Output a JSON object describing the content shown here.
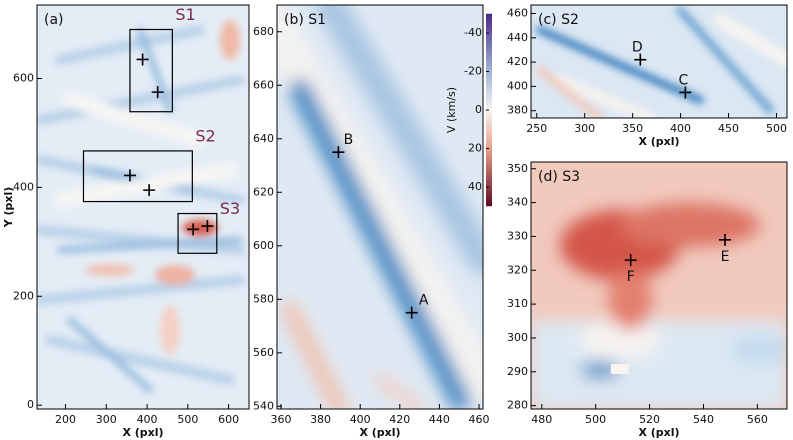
{
  "chart_data": [
    {
      "type": "image",
      "title": "(a)",
      "x_label": "X (pxl)",
      "y_label": "Y (pxl)",
      "xlim": [
        130,
        650
      ],
      "ylim": [
        -7,
        735
      ],
      "xticks": [
        200,
        300,
        400,
        500,
        600
      ],
      "yticks": [
        0,
        200,
        400,
        600
      ],
      "annotations": [
        "S1",
        "S2",
        "S3"
      ]
    },
    {
      "type": "image",
      "title": "(b) S1",
      "x_label": "X (pxl)",
      "xlim": [
        358,
        462
      ],
      "ylim": [
        539,
        690
      ],
      "xticks": [
        360,
        380,
        400,
        420,
        440,
        460
      ],
      "yticks": [
        540,
        560,
        580,
        600,
        620,
        640,
        660,
        680
      ],
      "points": [
        {
          "label": "A",
          "x": 426,
          "y": 575
        },
        {
          "label": "B",
          "x": 389,
          "y": 635
        }
      ],
      "colorbar": {
        "label": "V (km/s)",
        "lim": [
          -50,
          50
        ],
        "ticks": [
          -40,
          -20,
          0,
          20,
          40
        ]
      }
    },
    {
      "type": "image",
      "title": "(c) S2",
      "x_label": "X (pxl)",
      "xlim": [
        244,
        511
      ],
      "ylim": [
        374,
        467
      ],
      "xticks": [
        250,
        300,
        350,
        400,
        450,
        500
      ],
      "yticks": [
        380,
        400,
        420,
        440,
        460
      ],
      "points": [
        {
          "label": "C",
          "x": 405,
          "y": 395
        },
        {
          "label": "D",
          "x": 358,
          "y": 422
        }
      ]
    },
    {
      "type": "image",
      "title": "(d) S3",
      "x_label": "X (pxl)",
      "xlim": [
        476,
        571
      ],
      "ylim": [
        279,
        352
      ],
      "xticks": [
        480,
        500,
        520,
        540,
        560
      ],
      "yticks": [
        280,
        290,
        300,
        310,
        320,
        330,
        340,
        350
      ],
      "points": [
        {
          "label": "E",
          "x": 548,
          "y": 329
        },
        {
          "label": "F",
          "x": 513,
          "y": 323
        }
      ]
    }
  ]
}
